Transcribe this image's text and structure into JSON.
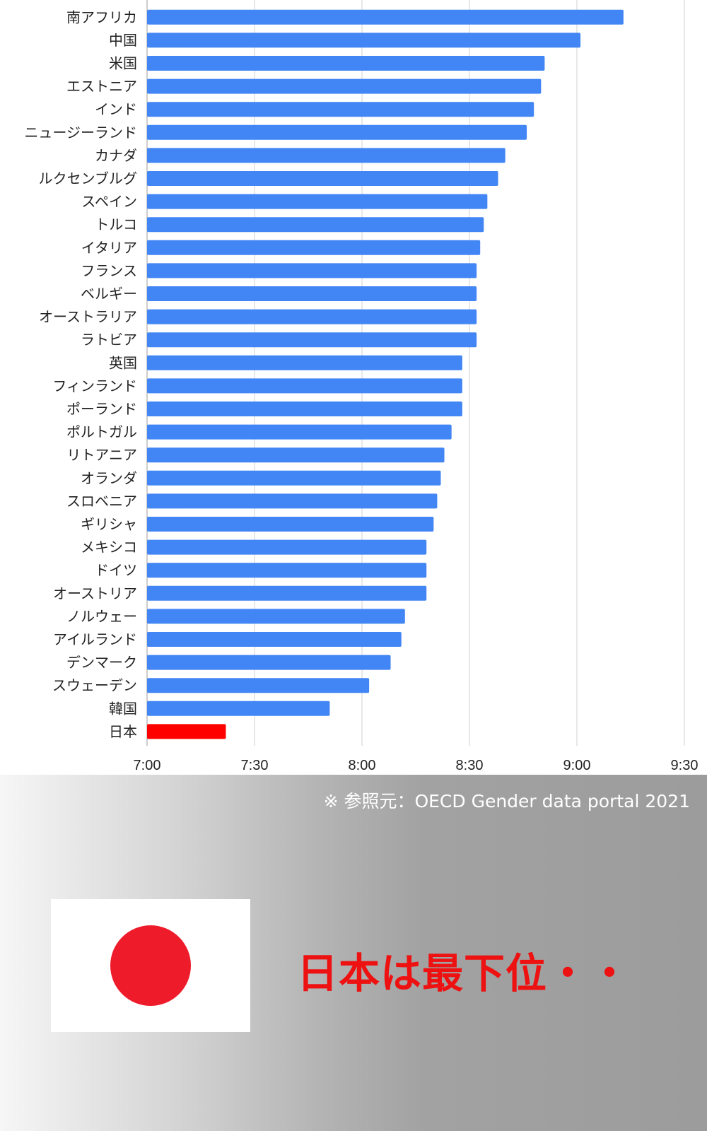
{
  "chart_data": {
    "type": "bar",
    "orientation": "horizontal",
    "categories": [
      "南アフリカ",
      "中国",
      "米国",
      "エストニア",
      "インド",
      "ニュージーランド",
      "カナダ",
      "ルクセンブルグ",
      "スペイン",
      "トルコ",
      "イタリア",
      "フランス",
      "ベルギー",
      "オーストラリア",
      "ラトビア",
      "英国",
      "フィンランド",
      "ポーランド",
      "ポルトガル",
      "リトアニア",
      "オランダ",
      "スロベニア",
      "ギリシャ",
      "メキシコ",
      "ドイツ",
      "オーストリア",
      "ノルウェー",
      "アイルランド",
      "デンマーク",
      "スウェーデン",
      "韓国",
      "日本"
    ],
    "values": [
      "9:13",
      "9:01",
      "8:51",
      "8:50",
      "8:48",
      "8:46",
      "8:40",
      "8:38",
      "8:35",
      "8:34",
      "8:33",
      "8:32",
      "8:32",
      "8:32",
      "8:32",
      "8:28",
      "8:28",
      "8:28",
      "8:25",
      "8:23",
      "8:22",
      "8:21",
      "8:20",
      "8:18",
      "8:18",
      "8:18",
      "8:12",
      "8:11",
      "8:08",
      "8:02",
      "7:51",
      "7:22"
    ],
    "xlim": [
      "7:00",
      "9:30"
    ],
    "xticks": [
      "7:00",
      "7:30",
      "8:00",
      "8:30",
      "9:00",
      "9:30"
    ],
    "grid": true,
    "colors": {
      "bar": "#4285f4",
      "highlight": "#ff0000"
    },
    "highlight_category": "日本"
  },
  "source_note": "※ 参照元：OECD Gender data portal 2021",
  "headline": "日本は最下位・・",
  "flag": {
    "icon": "japan-flag-icon",
    "background": "#ffffff",
    "disc_color": "#ee1c2b"
  }
}
